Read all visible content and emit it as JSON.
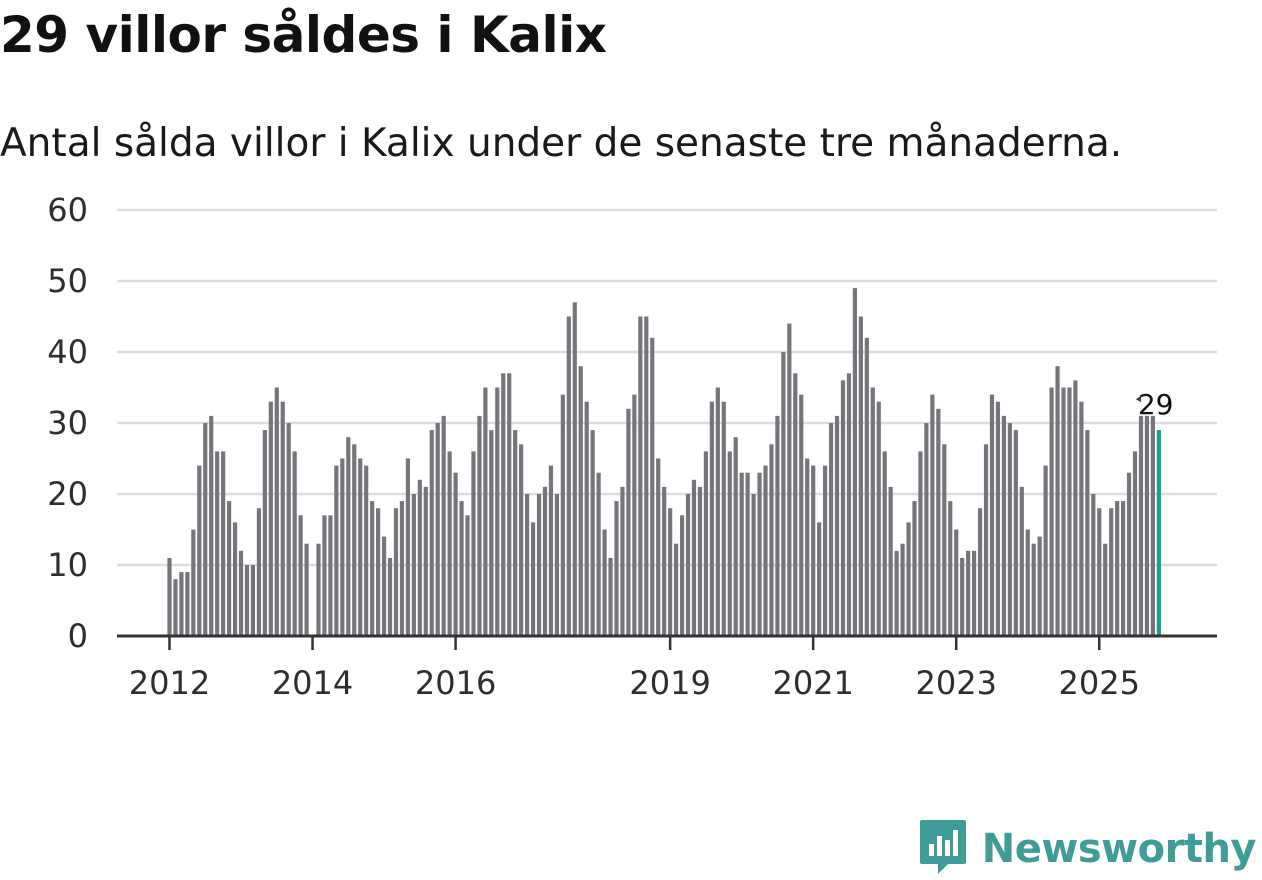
{
  "title": "29 villor såldes i Kalix",
  "subtitle": "Antal sålda villor i Kalix under de senaste tre månaderna.",
  "brand": {
    "name": "Newsworthy",
    "logo_icon": "newsworthy-bar-chart-icon"
  },
  "colors": {
    "bar": "#76757b",
    "highlight": "#1a9e93",
    "grid": "#dcdcdc",
    "axis": "#333333",
    "brand": "#3f9c98"
  },
  "chart_data": {
    "type": "bar",
    "title": "29 villor såldes i Kalix",
    "subtitle": "Antal sålda villor i Kalix under de senaste tre månaderna.",
    "xlabel": "",
    "ylabel": "",
    "ylim": [
      0,
      60
    ],
    "yticks": [
      0,
      10,
      20,
      30,
      40,
      50,
      60
    ],
    "grid": true,
    "x_start": "2012-01",
    "x_tick_labels": [
      {
        "label": "2012",
        "index": 0
      },
      {
        "label": "2014",
        "index": 24
      },
      {
        "label": "2016",
        "index": 48
      },
      {
        "label": "2019",
        "index": 84
      },
      {
        "label": "2021",
        "index": 108
      },
      {
        "label": "2023",
        "index": 132
      },
      {
        "label": "2025",
        "index": 156
      }
    ],
    "values": [
      11,
      8,
      9,
      9,
      15,
      24,
      30,
      31,
      26,
      26,
      19,
      16,
      12,
      10,
      10,
      18,
      29,
      33,
      35,
      33,
      30,
      26,
      17,
      13,
      0,
      13,
      17,
      17,
      24,
      25,
      28,
      27,
      25,
      24,
      19,
      18,
      14,
      11,
      18,
      19,
      25,
      20,
      22,
      21,
      29,
      30,
      31,
      26,
      23,
      19,
      17,
      26,
      31,
      35,
      29,
      35,
      37,
      37,
      29,
      27,
      20,
      16,
      20,
      21,
      24,
      20,
      34,
      45,
      47,
      38,
      33,
      29,
      23,
      15,
      11,
      19,
      21,
      32,
      34,
      45,
      45,
      42,
      25,
      21,
      18,
      13,
      17,
      20,
      22,
      21,
      26,
      33,
      35,
      33,
      26,
      28,
      23,
      23,
      20,
      23,
      24,
      27,
      31,
      40,
      44,
      37,
      34,
      25,
      24,
      16,
      24,
      30,
      31,
      36,
      37,
      49,
      45,
      42,
      35,
      33,
      26,
      21,
      12,
      13,
      16,
      19,
      26,
      30,
      34,
      32,
      27,
      19,
      15,
      11,
      12,
      12,
      18,
      27,
      34,
      33,
      31,
      30,
      29,
      21,
      15,
      13,
      14,
      24,
      35,
      38,
      35,
      35,
      36,
      33,
      29,
      20,
      18,
      13,
      18,
      19,
      19,
      23,
      26,
      31,
      31,
      31,
      29
    ],
    "highlight_index": 166,
    "annotation": {
      "text": "29",
      "index": 166
    }
  }
}
